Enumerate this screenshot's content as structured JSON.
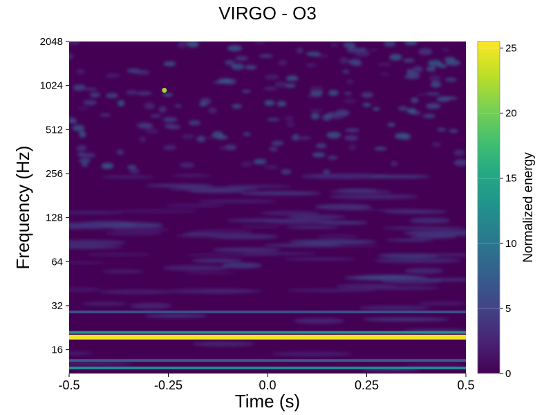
{
  "chart_data": {
    "type": "heatmap",
    "title": "VIRGO - O3",
    "xlabel": "Time (s)",
    "ylabel": "Frequency (Hz)",
    "xlim": [
      -0.5,
      0.5
    ],
    "ylim": [
      11,
      2048
    ],
    "yscale": "log2",
    "x_ticks": [
      -0.5,
      -0.25,
      0.0,
      0.25,
      0.5
    ],
    "x_tick_labels": [
      "-0.5",
      "-0.25",
      "0.0",
      "0.25",
      "0.5"
    ],
    "y_ticks": [
      16,
      32,
      64,
      128,
      256,
      512,
      1024,
      2048
    ],
    "y_tick_labels": [
      "16",
      "32",
      "64",
      "128",
      "256",
      "512",
      "1024",
      "2048"
    ],
    "colorbar": {
      "label": "Normalized energy",
      "range": [
        0,
        25.5
      ],
      "ticks": [
        0,
        5,
        10,
        15,
        20,
        25
      ],
      "tick_labels": [
        "0",
        "5",
        "10",
        "15",
        "20",
        "25"
      ],
      "colormap": "viridis"
    },
    "features": [
      {
        "kind": "band",
        "freq_hz": 19.5,
        "time_range": [
          -0.5,
          0.5
        ],
        "energy": 25
      },
      {
        "kind": "band",
        "freq_hz": 21,
        "time_range": [
          -0.5,
          0.5
        ],
        "energy": 13
      },
      {
        "kind": "band",
        "freq_hz": 12,
        "time_range": [
          -0.5,
          0.5
        ],
        "energy": 12
      },
      {
        "kind": "band",
        "freq_hz": 13.5,
        "time_range": [
          -0.5,
          0.5
        ],
        "energy": 7
      },
      {
        "kind": "band",
        "freq_hz": 29,
        "time_range": [
          -0.5,
          0.5
        ],
        "energy": 6
      },
      {
        "kind": "blob",
        "time_s": -0.26,
        "freq_hz": 950,
        "energy": 22
      }
    ]
  },
  "colors": {
    "viridis_low": "#440154",
    "viridis_mid": "#21918c",
    "viridis_high": "#fde725"
  }
}
